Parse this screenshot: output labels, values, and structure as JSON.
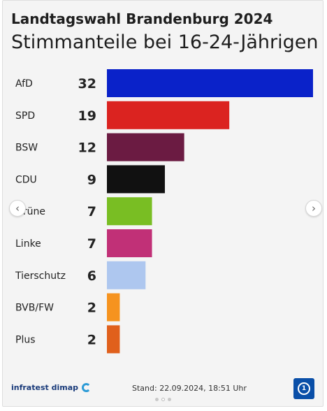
{
  "header": {
    "title": "Landtagswahl Brandenburg 2024",
    "subtitle": "Stimmanteile bei 16-24-Jährigen"
  },
  "chart_data": {
    "type": "bar",
    "orientation": "horizontal",
    "categories": [
      "AfD",
      "SPD",
      "BSW",
      "CDU",
      "Grüne",
      "Linke",
      "Tierschutz",
      "BVB/FW",
      "Plus"
    ],
    "values": [
      32,
      19,
      12,
      9,
      7,
      7,
      6,
      2,
      2
    ],
    "colors": [
      "#0a22c9",
      "#db2320",
      "#6b1b42",
      "#111111",
      "#79be23",
      "#c13077",
      "#aec7ef",
      "#f6931f",
      "#e0601c"
    ],
    "xlim": [
      0,
      32
    ],
    "grid": false,
    "legend": "none"
  },
  "footer": {
    "source": "infratest dimap",
    "date": "Stand:  22.09.2024, 18:51 Uhr"
  },
  "nav": {
    "prev_glyph": "‹",
    "next_glyph": "›"
  },
  "icons": {
    "source_logo": "infratest-dimap-logo",
    "broadcaster_logo": "ard-logo"
  },
  "carousel": {
    "pages": 3,
    "active_page": 2
  }
}
